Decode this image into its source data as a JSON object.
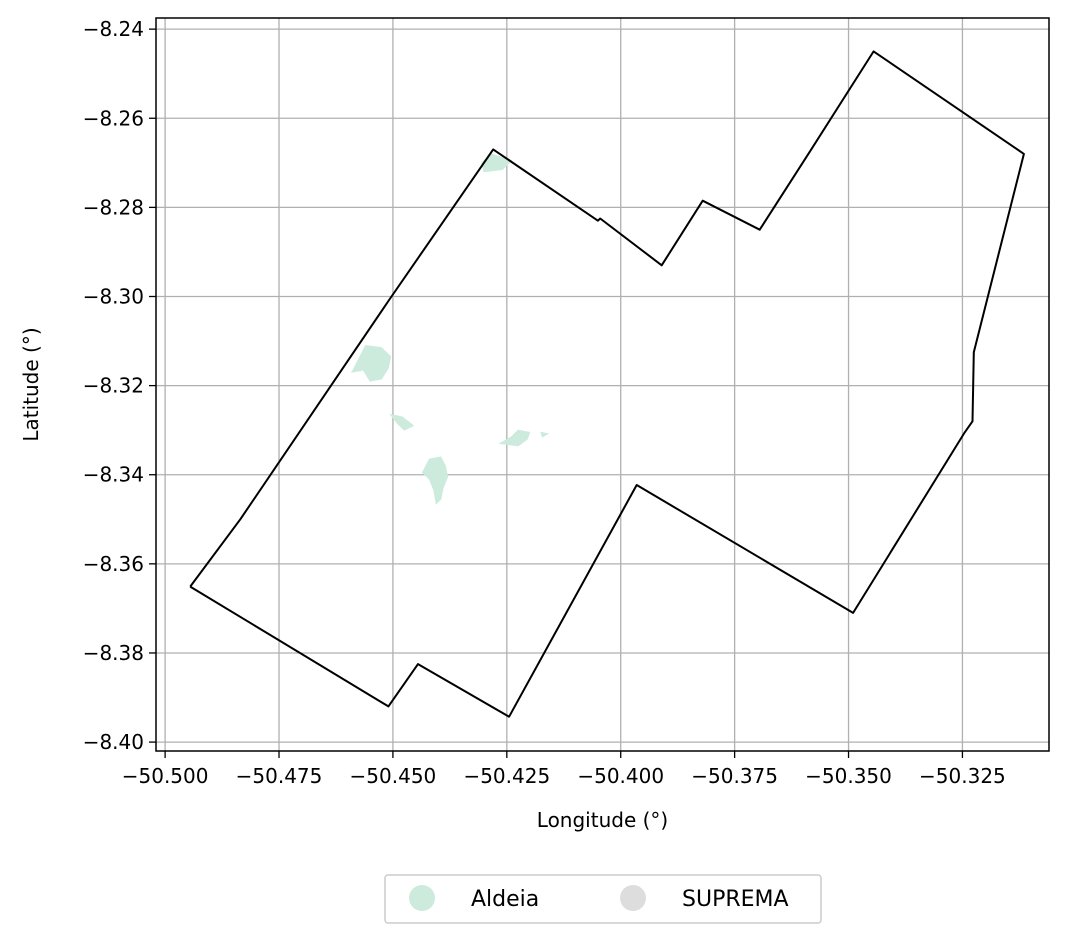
{
  "chart_data": {
    "type": "map",
    "xlabel": "Longitude (°)",
    "ylabel": "Latitude (°)",
    "xlim": [
      -50.502,
      -50.306
    ],
    "ylim": [
      -8.402,
      -8.2375
    ],
    "grid": true,
    "x_ticks": [
      -50.5,
      -50.475,
      -50.45,
      -50.425,
      -50.4,
      -50.375,
      -50.35,
      -50.325
    ],
    "x_tick_labels": [
      "−50.500",
      "−50.475",
      "−50.450",
      "−50.425",
      "−50.400",
      "−50.375",
      "−50.350",
      "−50.325"
    ],
    "y_ticks": [
      -8.24,
      -8.26,
      -8.28,
      -8.3,
      -8.32,
      -8.34,
      -8.36,
      -8.38,
      -8.4
    ],
    "y_tick_labels": [
      "−8.24",
      "−8.26",
      "−8.28",
      "−8.30",
      "−8.32",
      "−8.34",
      "−8.36",
      "−8.38",
      "−8.40"
    ],
    "boundary": [
      [
        -50.4945,
        -8.3651
      ],
      [
        -50.4835,
        -8.35
      ],
      [
        -50.451,
        -8.301
      ],
      [
        -50.428,
        -8.267
      ],
      [
        -50.405,
        -8.283
      ],
      [
        -50.4045,
        -8.2825
      ],
      [
        -50.391,
        -8.293
      ],
      [
        -50.382,
        -8.2785
      ],
      [
        -50.3695,
        -8.285
      ],
      [
        -50.3585,
        -8.2675
      ],
      [
        -50.3445,
        -8.245
      ],
      [
        -50.3115,
        -8.268
      ],
      [
        -50.3225,
        -8.3125
      ],
      [
        -50.3228,
        -8.328
      ],
      [
        -50.3245,
        -8.3305
      ],
      [
        -50.349,
        -8.371
      ],
      [
        -50.3965,
        -8.3423
      ],
      [
        -50.4245,
        -8.3943
      ],
      [
        -50.4445,
        -8.3825
      ],
      [
        -50.451,
        -8.392
      ],
      [
        -50.4945,
        -8.3651
      ]
    ],
    "boundary_color": "#000000",
    "legend": [
      {
        "label": "Aldeia",
        "color": "#cdebdc"
      },
      {
        "label": "SUPREMA",
        "color": "#dddddd"
      }
    ],
    "legend_position": "bottom-center",
    "aldeia_color": "#cdebdc",
    "aldeia_areas": [
      [
        [
          -50.4285,
          -8.268
        ],
        [
          -50.424,
          -8.2695
        ],
        [
          -50.426,
          -8.2715
        ],
        [
          -50.43,
          -8.272
        ],
        [
          -50.4305,
          -8.27
        ]
      ],
      [
        [
          -50.458,
          -8.315
        ],
        [
          -50.456,
          -8.311
        ],
        [
          -50.4525,
          -8.3115
        ],
        [
          -50.4505,
          -8.3135
        ],
        [
          -50.451,
          -8.316
        ],
        [
          -50.4525,
          -8.3185
        ],
        [
          -50.455,
          -8.319
        ],
        [
          -50.4565,
          -8.3165
        ],
        [
          -50.459,
          -8.317
        ]
      ],
      [
        [
          -50.4505,
          -8.3265
        ],
        [
          -50.448,
          -8.327
        ],
        [
          -50.4455,
          -8.329
        ],
        [
          -50.4475,
          -8.33
        ],
        [
          -50.449,
          -8.3285
        ]
      ],
      [
        [
          -50.442,
          -8.3365
        ],
        [
          -50.4395,
          -8.336
        ],
        [
          -50.4385,
          -8.338
        ],
        [
          -50.438,
          -8.3405
        ],
        [
          -50.439,
          -8.343
        ],
        [
          -50.4395,
          -8.3455
        ],
        [
          -50.4405,
          -8.3465
        ],
        [
          -50.441,
          -8.3435
        ],
        [
          -50.442,
          -8.341
        ],
        [
          -50.4435,
          -8.3395
        ],
        [
          -50.4425,
          -8.3375
        ]
      ],
      [
        [
          -50.4225,
          -8.33
        ],
        [
          -50.42,
          -8.3305
        ],
        [
          -50.4205,
          -8.332
        ],
        [
          -50.4225,
          -8.3335
        ],
        [
          -50.4265,
          -8.333
        ],
        [
          -50.424,
          -8.3315
        ]
      ],
      [
        [
          -50.4175,
          -8.3305
        ],
        [
          -50.416,
          -8.3308
        ],
        [
          -50.4172,
          -8.3315
        ]
      ]
    ]
  }
}
